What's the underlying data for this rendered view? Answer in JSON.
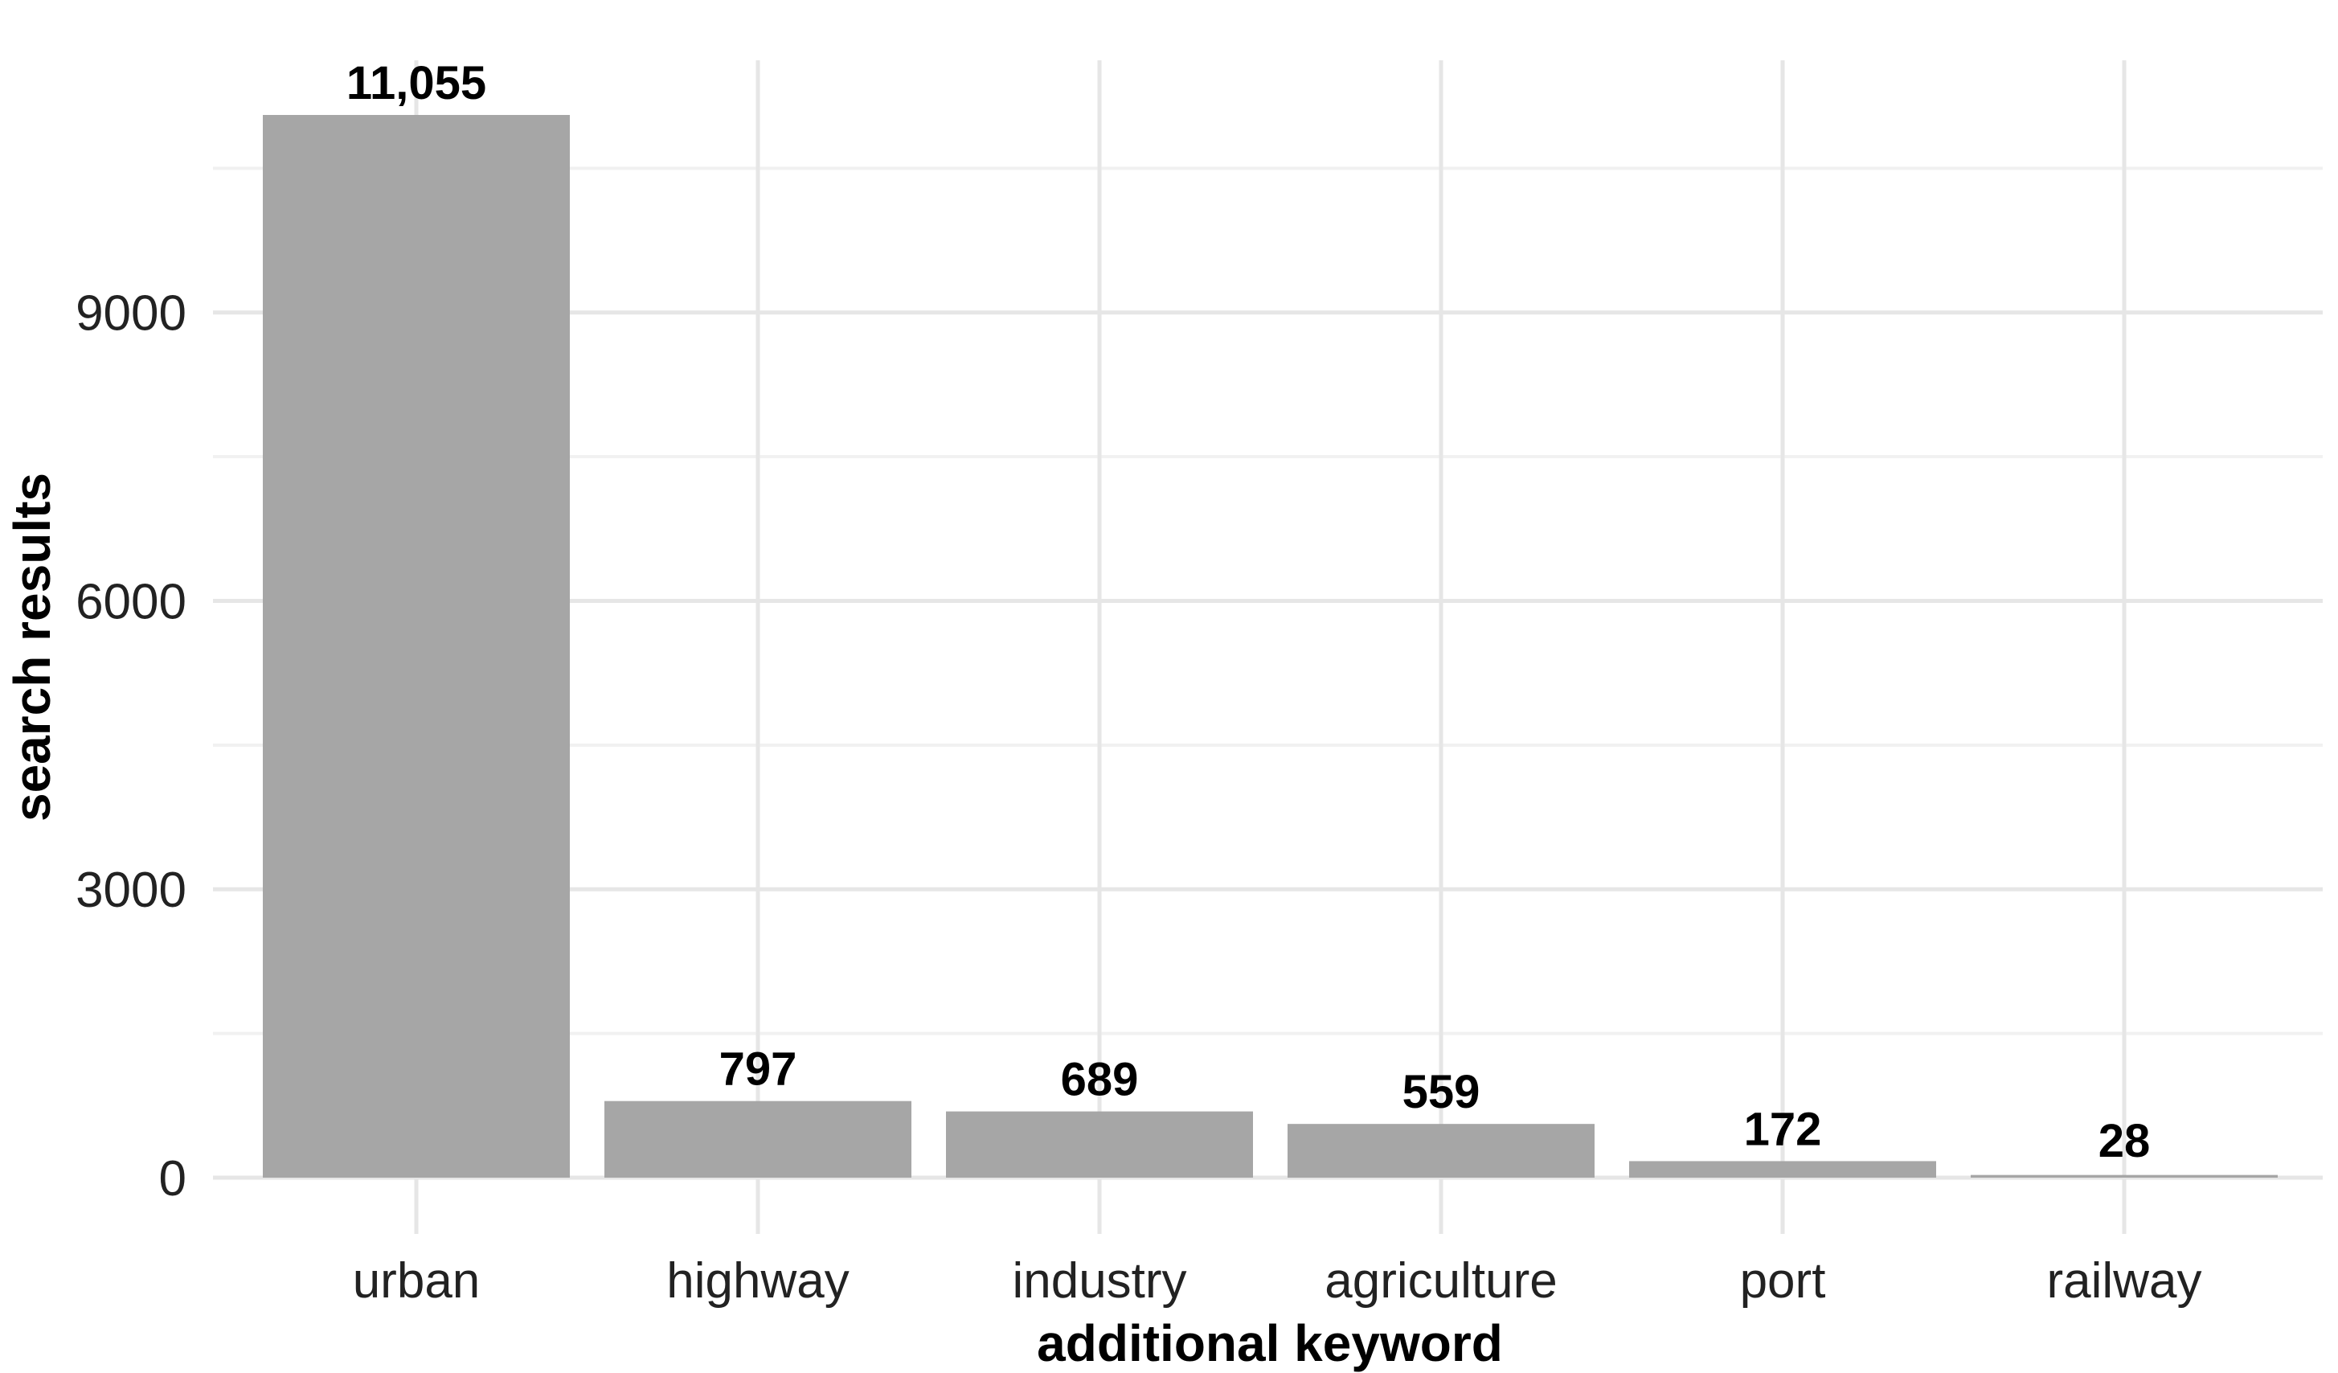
{
  "chart_data": {
    "type": "bar",
    "categories": [
      "urban",
      "highway",
      "industry",
      "agriculture",
      "port",
      "railway"
    ],
    "values": [
      11055,
      797,
      689,
      559,
      172,
      28
    ],
    "data_labels": [
      "11,055",
      "797",
      "689",
      "559",
      "172",
      "28"
    ],
    "xlabel": "additional keyword",
    "ylabel": "search results",
    "yticks": [
      0,
      3000,
      6000,
      9000
    ],
    "ylim": [
      0,
      11600
    ],
    "grid": true,
    "bar_color": "#a6a6a6",
    "grid_color": "#e6e6e6"
  }
}
